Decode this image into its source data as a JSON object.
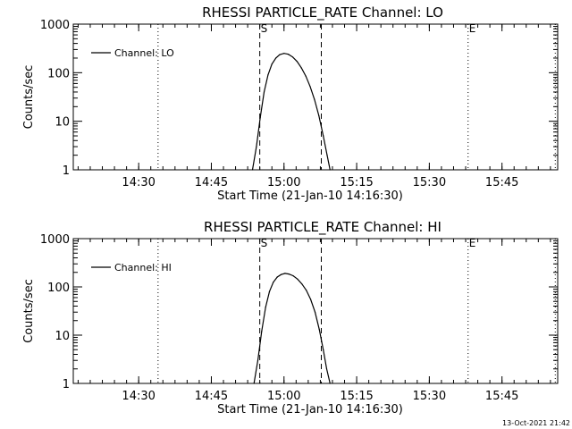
{
  "chart_data": [
    {
      "type": "line",
      "title": "RHESSI PARTICLE_RATE Channel: LO",
      "xlabel": "Start Time (21-Jan-10 14:16:30)",
      "ylabel": "Counts/sec",
      "yscale": "log",
      "ylim": [
        1,
        1000
      ],
      "xlim_minutes": [
        0,
        100
      ],
      "x_ticks": [
        {
          "label": "14:30",
          "t": 13.5
        },
        {
          "label": "14:45",
          "t": 28.5
        },
        {
          "label": "15:00",
          "t": 43.5
        },
        {
          "label": "15:15",
          "t": 58.5
        },
        {
          "label": "15:30",
          "t": 73.5
        },
        {
          "label": "15:45",
          "t": 88.5
        }
      ],
      "y_ticks": [
        {
          "label": "1",
          "v": 1
        },
        {
          "label": "10",
          "v": 10
        },
        {
          "label": "100",
          "v": 100
        },
        {
          "label": "1000",
          "v": 1000
        }
      ],
      "legend": {
        "label": "Channel: LO",
        "placement": "top-left"
      },
      "series": [
        {
          "name": "Channel: LO",
          "x": [
            37.0,
            37.8,
            38.6,
            39.4,
            40.2,
            41.0,
            41.8,
            42.6,
            43.5,
            44.4,
            45.3,
            46.2,
            47.1,
            48.0,
            48.9,
            49.8,
            50.7,
            51.6,
            52.4,
            53.0
          ],
          "y": [
            1,
            3,
            12,
            40,
            90,
            150,
            200,
            235,
            250,
            240,
            210,
            170,
            125,
            85,
            52,
            28,
            13,
            5,
            2,
            1
          ]
        }
      ],
      "annotations": [
        {
          "type": "dotted-vline",
          "t": 17.5
        },
        {
          "type": "dashed-vline",
          "t": 38.5,
          "label": "S"
        },
        {
          "type": "dashed-vline",
          "t": 51.2
        },
        {
          "type": "dotted-vline",
          "t": 81.5,
          "label": "E"
        },
        {
          "type": "dotted-vline",
          "t": 99.5
        }
      ]
    },
    {
      "type": "line",
      "title": "RHESSI PARTICLE_RATE Channel: HI",
      "xlabel": "Start Time (21-Jan-10 14:16:30)",
      "ylabel": "Counts/sec",
      "yscale": "log",
      "ylim": [
        1,
        1000
      ],
      "xlim_minutes": [
        0,
        100
      ],
      "x_ticks": [
        {
          "label": "14:30",
          "t": 13.5
        },
        {
          "label": "14:45",
          "t": 28.5
        },
        {
          "label": "15:00",
          "t": 43.5
        },
        {
          "label": "15:15",
          "t": 58.5
        },
        {
          "label": "15:30",
          "t": 73.5
        },
        {
          "label": "15:45",
          "t": 88.5
        }
      ],
      "y_ticks": [
        {
          "label": "1",
          "v": 1
        },
        {
          "label": "10",
          "v": 10
        },
        {
          "label": "100",
          "v": 100
        },
        {
          "label": "1000",
          "v": 1000
        }
      ],
      "legend": {
        "label": "Channel: HI",
        "placement": "top-left"
      },
      "series": [
        {
          "name": "Channel: HI",
          "x": [
            37.3,
            38.1,
            38.9,
            39.7,
            40.5,
            41.3,
            42.1,
            42.9,
            43.7,
            44.5,
            45.4,
            46.3,
            47.2,
            48.1,
            49.0,
            49.9,
            50.8,
            51.6,
            52.3,
            53.0
          ],
          "y": [
            1,
            3,
            12,
            38,
            80,
            125,
            160,
            180,
            190,
            185,
            170,
            145,
            115,
            85,
            55,
            30,
            13,
            5,
            2,
            1
          ]
        }
      ],
      "annotations": [
        {
          "type": "dotted-vline",
          "t": 17.5
        },
        {
          "type": "dashed-vline",
          "t": 38.5,
          "label": "S"
        },
        {
          "type": "dashed-vline",
          "t": 51.2
        },
        {
          "type": "dotted-vline",
          "t": 81.5,
          "label": "E"
        },
        {
          "type": "dotted-vline",
          "t": 99.5
        }
      ]
    }
  ],
  "footer": {
    "timestamp": "13-Oct-2021 21:42"
  }
}
